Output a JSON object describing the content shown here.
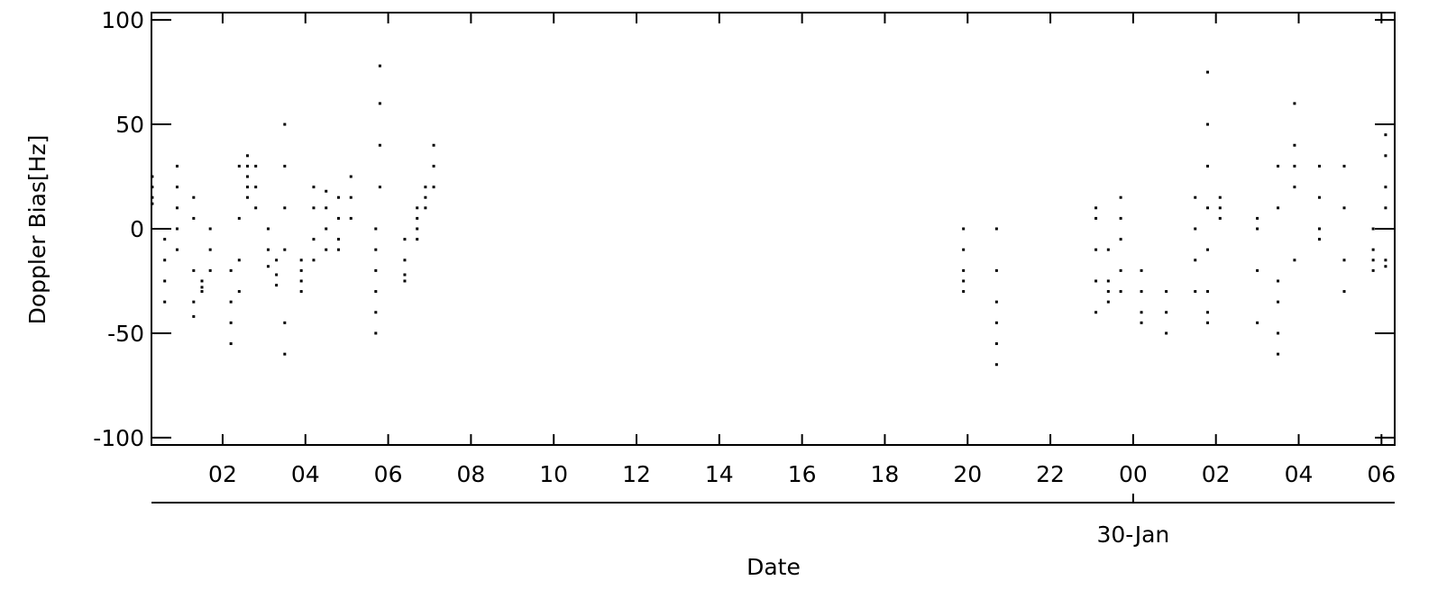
{
  "chart_data": {
    "type": "scatter",
    "ylabel": "Doppler Bias[Hz]",
    "xlabel": "Date",
    "date_marker": {
      "value": 24,
      "label": "30-Jan"
    },
    "xlim": [
      0.28,
      30.32
    ],
    "ylim": [
      -103.5,
      103.5
    ],
    "xticks": [
      {
        "value": 2,
        "label": "02"
      },
      {
        "value": 4,
        "label": "04"
      },
      {
        "value": 6,
        "label": "06"
      },
      {
        "value": 8,
        "label": "08"
      },
      10,
      12,
      14,
      16,
      18,
      20,
      22,
      {
        "value": 24,
        "label": "00"
      },
      {
        "value": 26,
        "label": "02"
      },
      {
        "value": 28,
        "label": "04"
      },
      {
        "value": 30,
        "label": "06"
      }
    ],
    "yticks": [
      -100,
      -50,
      0,
      50,
      100
    ],
    "color": "#000000",
    "x": [
      0.3,
      0.3,
      0.3,
      0.3,
      0.6,
      0.6,
      0.6,
      0.6,
      0.9,
      0.9,
      0.9,
      0.9,
      0.9,
      1.3,
      1.3,
      1.3,
      1.3,
      1.3,
      1.5,
      1.5,
      1.5,
      1.7,
      1.7,
      1.7,
      2.2,
      2.2,
      2.2,
      2.2,
      2.4,
      2.4,
      2.4,
      2.4,
      2.6,
      2.6,
      2.6,
      2.6,
      2.6,
      2.8,
      2.8,
      2.8,
      3.1,
      3.1,
      3.1,
      3.3,
      3.3,
      3.3,
      3.5,
      3.5,
      3.5,
      3.5,
      3.5,
      3.5,
      3.9,
      3.9,
      3.9,
      3.9,
      4.2,
      4.2,
      4.2,
      4.2,
      4.5,
      4.5,
      4.5,
      4.5,
      4.8,
      4.8,
      4.8,
      4.8,
      5.1,
      5.1,
      5.1,
      5.7,
      5.7,
      5.7,
      5.7,
      5.7,
      5.7,
      5.8,
      5.8,
      5.8,
      5.8,
      6.4,
      6.4,
      6.4,
      6.4,
      6.7,
      6.7,
      6.7,
      6.7,
      6.9,
      6.9,
      6.9,
      7.1,
      7.1,
      7.1,
      19.9,
      19.9,
      19.9,
      19.9,
      19.9,
      20.7,
      20.7,
      20.7,
      20.7,
      20.7,
      20.7,
      23.1,
      23.1,
      23.1,
      23.1,
      23.1,
      23.4,
      23.4,
      23.4,
      23.4,
      23.7,
      23.7,
      23.7,
      23.7,
      23.7,
      24.2,
      24.2,
      24.2,
      24.2,
      24.8,
      24.8,
      24.8,
      25.5,
      25.5,
      25.5,
      25.5,
      25.8,
      25.8,
      25.8,
      25.8,
      25.8,
      25.8,
      25.8,
      25.8,
      26.1,
      26.1,
      26.1,
      27.0,
      27.0,
      27.0,
      27.0,
      27.5,
      27.5,
      27.5,
      27.5,
      27.5,
      27.5,
      27.9,
      27.9,
      27.9,
      27.9,
      27.9,
      28.5,
      28.5,
      28.5,
      28.5,
      29.1,
      29.1,
      29.1,
      29.1,
      29.8,
      29.8,
      29.8,
      29.8,
      30.1,
      30.1,
      30.1,
      30.1,
      30.1,
      30.1
    ],
    "values": [
      25,
      20,
      15,
      12,
      -5,
      -15,
      -25,
      -35,
      30,
      20,
      10,
      0,
      -10,
      15,
      5,
      -20,
      -35,
      -42,
      -25,
      -30,
      -28,
      0,
      -10,
      -20,
      -20,
      -35,
      -45,
      -55,
      -15,
      -30,
      5,
      30,
      15,
      20,
      25,
      30,
      35,
      30,
      20,
      10,
      0,
      -10,
      -18,
      -15,
      -22,
      -27,
      50,
      30,
      10,
      -10,
      -45,
      -60,
      -30,
      -25,
      -20,
      -15,
      20,
      10,
      -5,
      -15,
      18,
      10,
      0,
      -10,
      -10,
      -5,
      5,
      15,
      25,
      15,
      5,
      -20,
      -30,
      -40,
      -50,
      -10,
      0,
      78,
      60,
      40,
      20,
      -15,
      -22,
      -25,
      -5,
      0,
      5,
      -5,
      10,
      20,
      15,
      10,
      40,
      30,
      20,
      -25,
      -30,
      -20,
      -10,
      0,
      -35,
      -45,
      -55,
      -65,
      0,
      -20,
      10,
      5,
      -10,
      -25,
      -40,
      -30,
      -35,
      -25,
      -10,
      15,
      5,
      -5,
      -20,
      -30,
      -40,
      -45,
      -30,
      -20,
      -30,
      -40,
      -50,
      15,
      0,
      -15,
      -30,
      -40,
      -45,
      -30,
      -10,
      10,
      30,
      50,
      75,
      10,
      5,
      15,
      5,
      0,
      -20,
      -45,
      -25,
      -35,
      -50,
      -60,
      10,
      30,
      60,
      40,
      30,
      20,
      -15,
      0,
      -5,
      15,
      30,
      30,
      10,
      -15,
      -30,
      0,
      -10,
      -15,
      -20,
      -18,
      -15,
      10,
      20,
      35,
      45
    ]
  }
}
